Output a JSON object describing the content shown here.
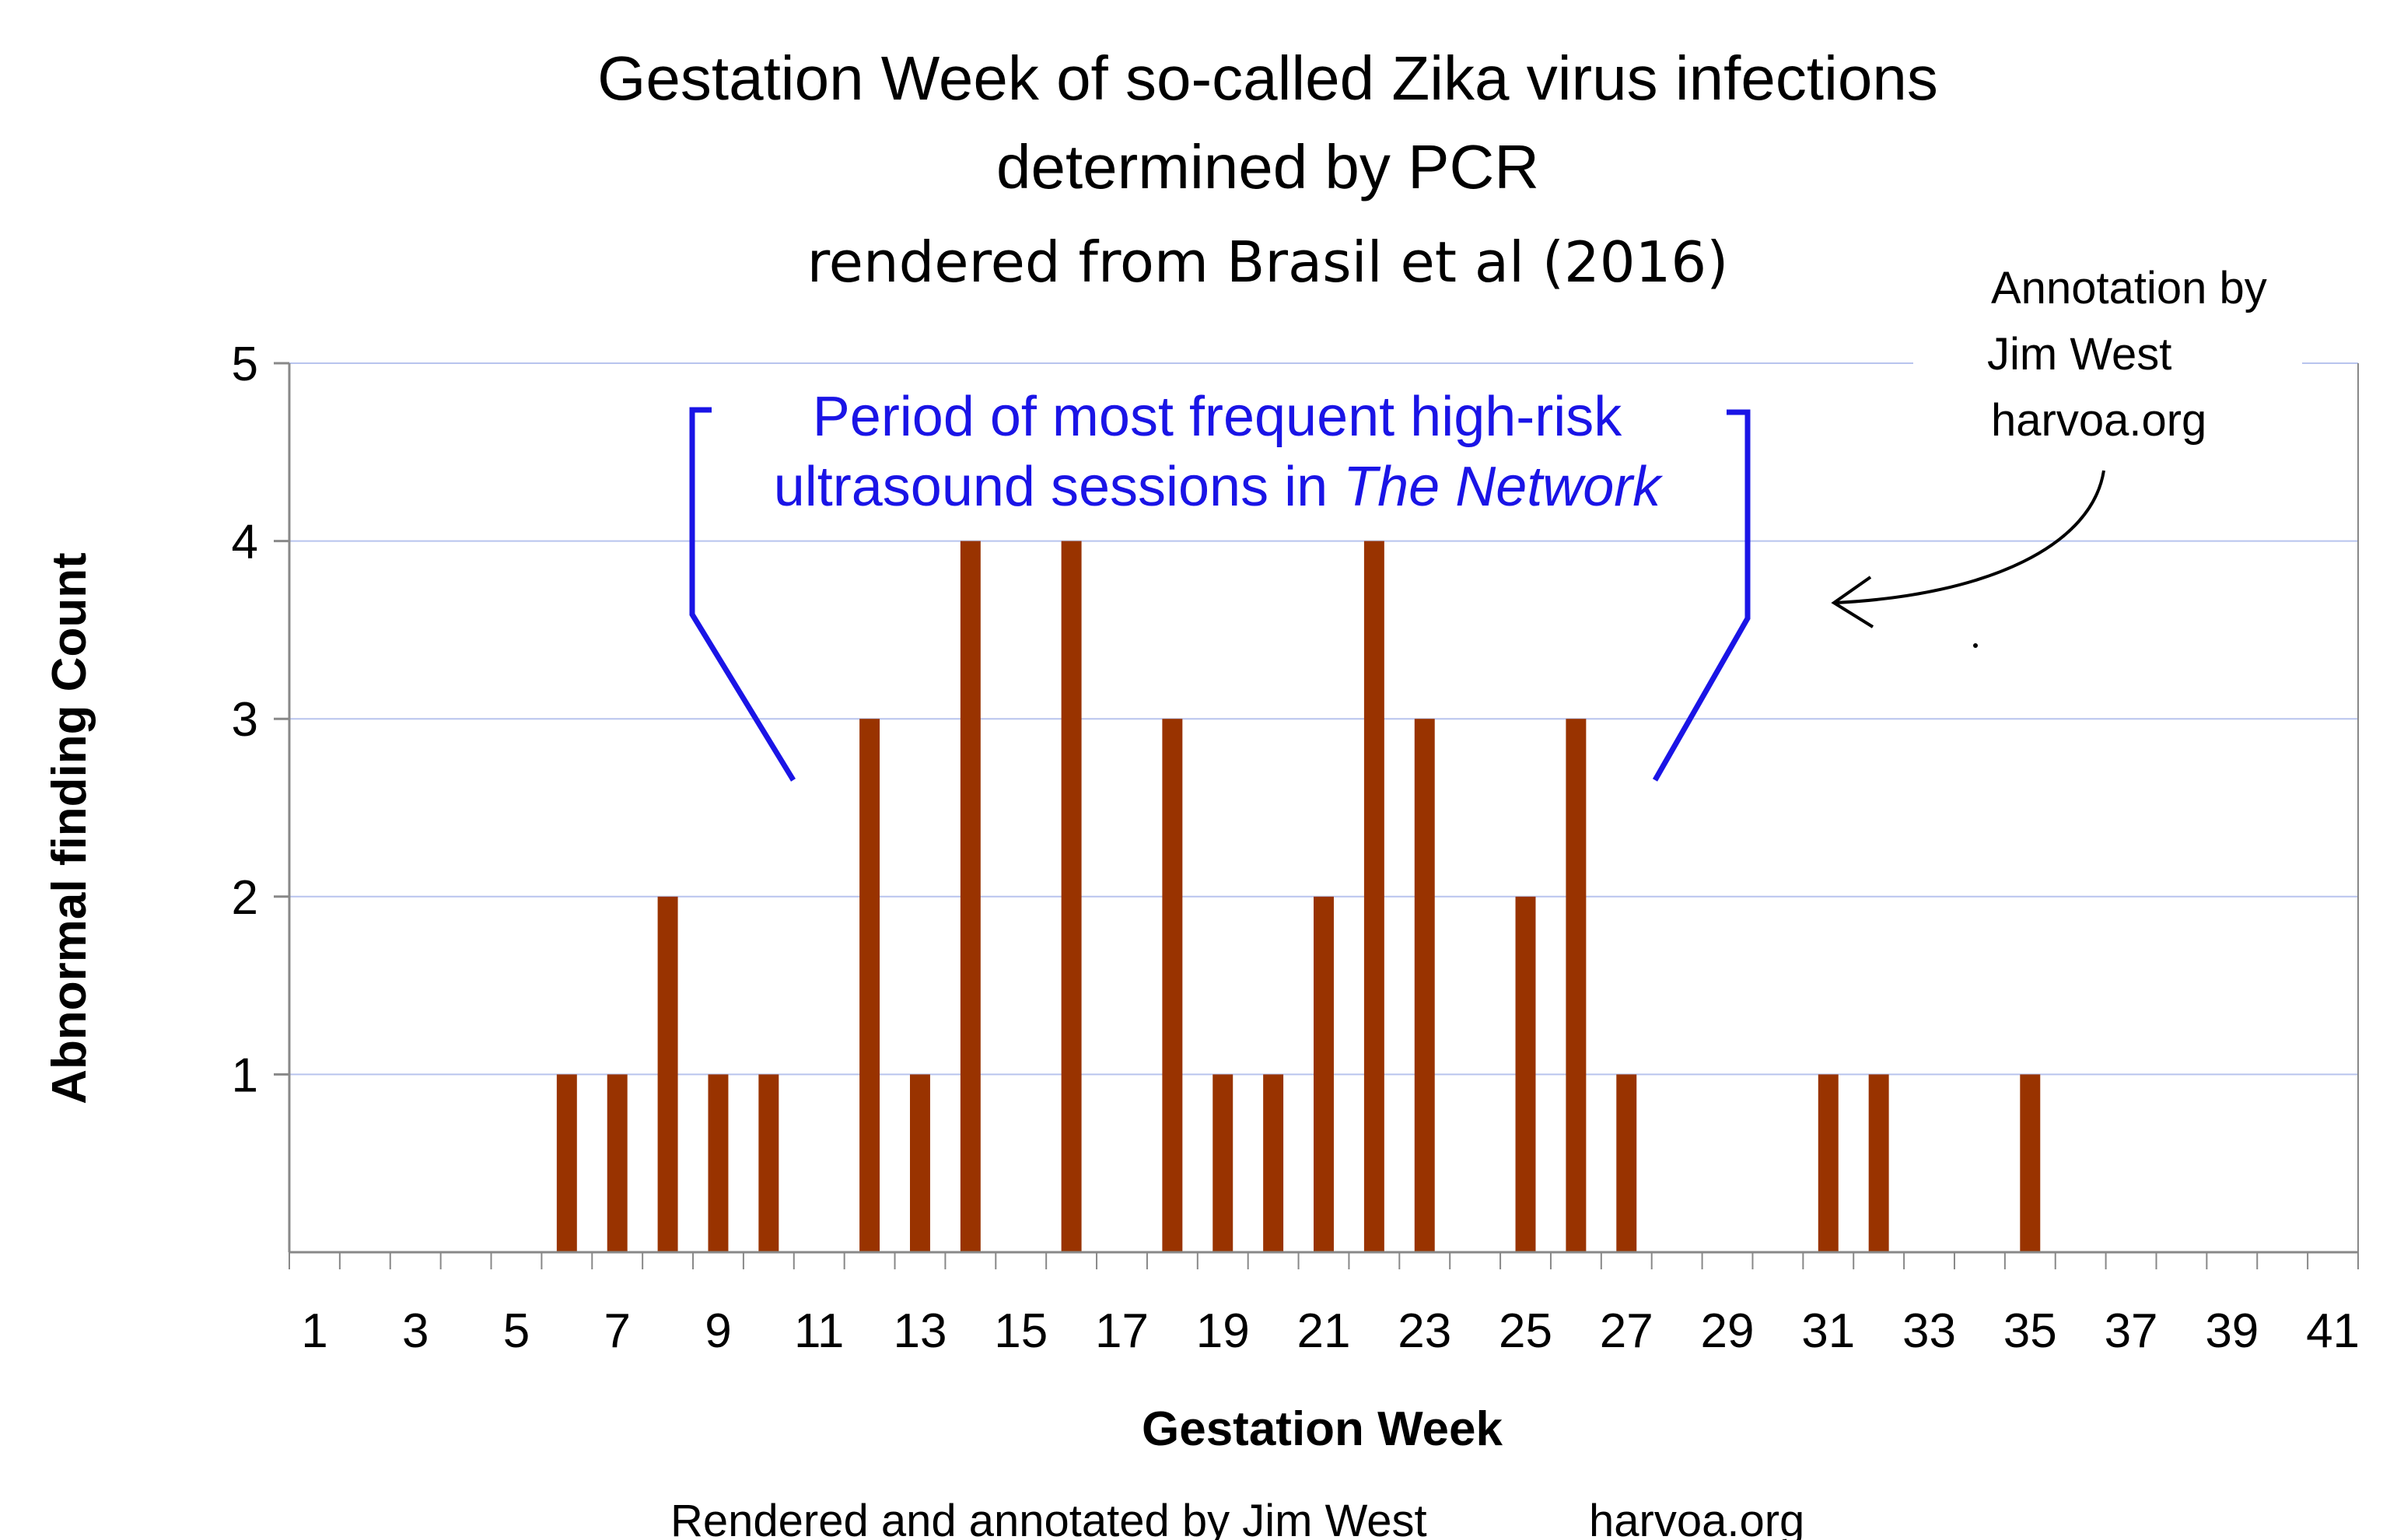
{
  "colors": {
    "bar": "#993300",
    "grid": "#b8c4ee",
    "axis": "#888888",
    "annotation_blue": "#1a14e6",
    "text": "#000000"
  },
  "chart_data": {
    "type": "bar",
    "title_line1": "Gestation Week of so-called Zika virus infections",
    "title_line2": "determined by PCR",
    "subtitle": "rendered from Brasil et al (2016)",
    "xlabel": "Gestation Week",
    "ylabel": "Abnormal finding Count",
    "xlim": [
      0.5,
      41.5
    ],
    "ylim": [
      0,
      5
    ],
    "yticks": [
      "1",
      "2",
      "3",
      "4",
      "5"
    ],
    "xticks": [
      "1",
      "3",
      "5",
      "7",
      "9",
      "11",
      "13",
      "15",
      "17",
      "19",
      "21",
      "23",
      "25",
      "27",
      "29",
      "31",
      "33",
      "35",
      "37",
      "39",
      "41"
    ],
    "grid": true,
    "legend": "none",
    "x": [
      6,
      7,
      8,
      9,
      10,
      12,
      13,
      14,
      16,
      18,
      19,
      20,
      21,
      22,
      23,
      25,
      26,
      27,
      31,
      32,
      35
    ],
    "values": [
      1,
      1,
      2,
      1,
      1,
      3,
      1,
      4,
      4,
      3,
      1,
      1,
      2,
      4,
      3,
      2,
      3,
      1,
      1,
      1,
      1
    ]
  },
  "annotations": {
    "period_line1": "Period of most frequent high-risk",
    "period_line2_prefix": "ultrasound sessions in ",
    "period_line2_italic": "The Network",
    "author_line1": "Annotation by",
    "author_line2": "Jim West",
    "author_line3": "harvoa.org",
    "footer_name": "Rendered and annotated by Jim West",
    "footer_site": "harvoa.org"
  }
}
